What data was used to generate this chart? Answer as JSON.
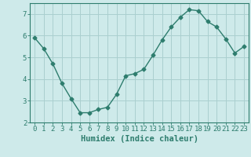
{
  "x": [
    0,
    1,
    2,
    3,
    4,
    5,
    6,
    7,
    8,
    9,
    10,
    11,
    12,
    13,
    14,
    15,
    16,
    17,
    18,
    19,
    20,
    21,
    22,
    23
  ],
  "y": [
    5.9,
    5.4,
    4.7,
    3.8,
    3.1,
    2.45,
    2.45,
    2.6,
    2.7,
    3.3,
    4.15,
    4.25,
    4.45,
    5.1,
    5.8,
    6.4,
    6.85,
    7.2,
    7.15,
    6.65,
    6.4,
    5.85,
    5.2,
    5.5
  ],
  "line_color": "#2e7d6e",
  "marker": "D",
  "marker_size": 2.5,
  "bg_color": "#ceeaea",
  "grid_color": "#aacfcf",
  "xlabel": "Humidex (Indice chaleur)",
  "ylim": [
    2,
    7.5
  ],
  "xlim": [
    -0.5,
    23.5
  ],
  "yticks": [
    2,
    3,
    4,
    5,
    6,
    7
  ],
  "xticks": [
    0,
    1,
    2,
    3,
    4,
    5,
    6,
    7,
    8,
    9,
    10,
    11,
    12,
    13,
    14,
    15,
    16,
    17,
    18,
    19,
    20,
    21,
    22,
    23
  ],
  "xlabel_fontsize": 7.5,
  "tick_fontsize": 6.5,
  "line_width": 1.0,
  "axis_color": "#2e7d6e",
  "text_color": "#2e7d6e"
}
